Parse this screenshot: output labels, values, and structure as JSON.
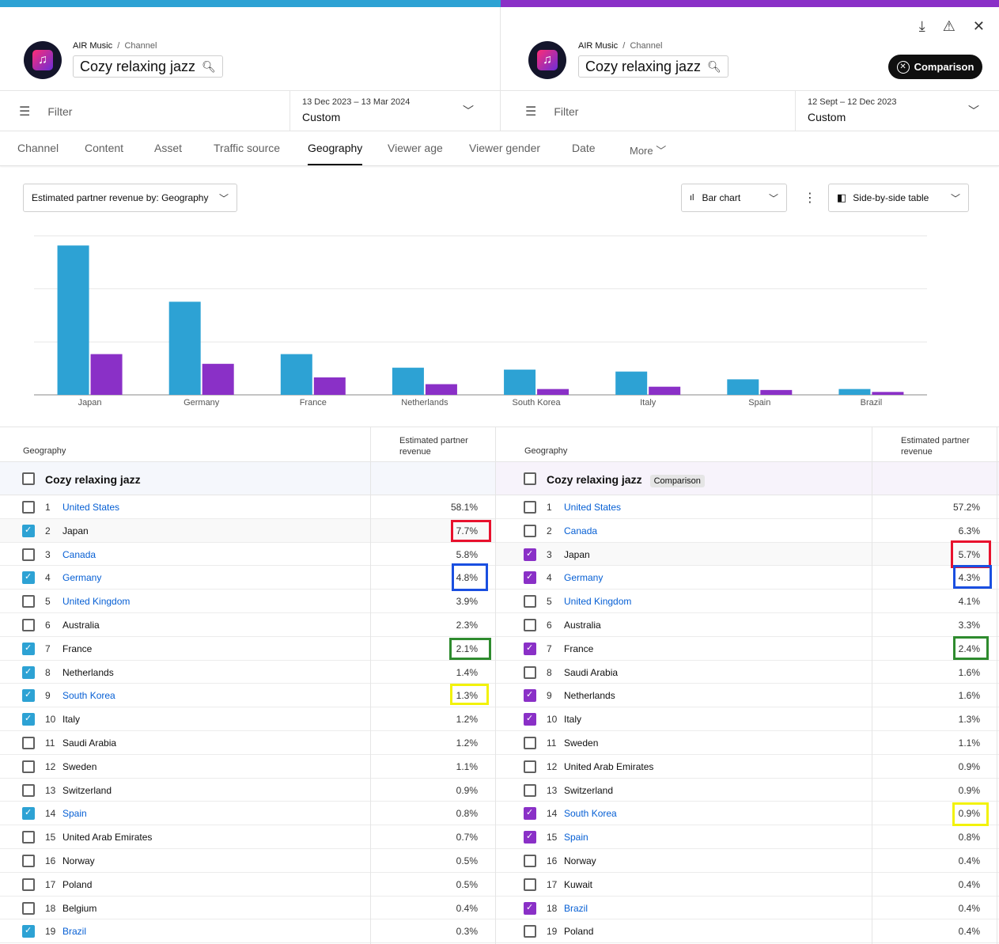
{
  "header": {
    "left": {
      "crumb_brand": "AIR Music",
      "crumb_sep": "/",
      "crumb_page": "Channel",
      "channel_name": "Cozy relaxing jazz"
    },
    "right": {
      "crumb_brand": "AIR Music",
      "crumb_sep": "/",
      "crumb_page": "Channel",
      "channel_name": "Cozy relaxing jazz"
    },
    "comparison_button": "Comparison",
    "icons": [
      "download-icon",
      "feedback-icon",
      "close-icon"
    ]
  },
  "filters": {
    "left": {
      "placeholder": "Filter",
      "date_range": "13 Dec 2023 – 13 Mar 2024",
      "date_mode": "Custom"
    },
    "right": {
      "placeholder": "Filter",
      "date_range": "12 Sept – 12 Dec 2023",
      "date_mode": "Custom"
    }
  },
  "tabs": [
    "Channel",
    "Content",
    "Asset",
    "Traffic source",
    "Geography",
    "Viewer age",
    "Viewer gender",
    "Date",
    "More"
  ],
  "active_tab": "Geography",
  "controls": {
    "metric_select": "Estimated partner revenue by: Geography",
    "chart_type": "Bar chart",
    "table_mode": "Side-by-side table"
  },
  "chart_data": {
    "type": "bar",
    "categories": [
      "Japan",
      "Germany",
      "France",
      "Netherlands",
      "South Korea",
      "Italy",
      "Spain",
      "Brazil"
    ],
    "series": [
      {
        "values": [
          7.7,
          4.8,
          2.1,
          1.4,
          1.3,
          1.2,
          0.8,
          0.3
        ]
      },
      {
        "values": [
          2.1,
          1.6,
          0.9,
          0.55,
          0.3,
          0.42,
          0.25,
          0.15
        ]
      }
    ],
    "colors": [
      "#2da2d4",
      "#8a30c7"
    ],
    "ylim": [
      0,
      8.2
    ],
    "grid": true
  },
  "tables": {
    "left": {
      "geo_header": "Geography",
      "rev_header_1": "Estimated partner",
      "rev_header_2": "revenue",
      "total_label": "Cozy relaxing jazz",
      "rows": [
        {
          "rank": "1",
          "name": "United States",
          "value": "58.1%",
          "checked": false,
          "link": true
        },
        {
          "rank": "2",
          "name": "Japan",
          "value": "7.7%",
          "checked": true,
          "link": false
        },
        {
          "rank": "3",
          "name": "Canada",
          "value": "5.8%",
          "checked": false,
          "link": true
        },
        {
          "rank": "4",
          "name": "Germany",
          "value": "4.8%",
          "checked": true,
          "link": true
        },
        {
          "rank": "5",
          "name": "United Kingdom",
          "value": "3.9%",
          "checked": false,
          "link": true
        },
        {
          "rank": "6",
          "name": "Australia",
          "value": "2.3%",
          "checked": false,
          "link": false
        },
        {
          "rank": "7",
          "name": "France",
          "value": "2.1%",
          "checked": true,
          "link": false
        },
        {
          "rank": "8",
          "name": "Netherlands",
          "value": "1.4%",
          "checked": true,
          "link": false
        },
        {
          "rank": "9",
          "name": "South Korea",
          "value": "1.3%",
          "checked": true,
          "link": true
        },
        {
          "rank": "10",
          "name": "Italy",
          "value": "1.2%",
          "checked": true,
          "link": false
        },
        {
          "rank": "11",
          "name": "Saudi Arabia",
          "value": "1.2%",
          "checked": false,
          "link": false
        },
        {
          "rank": "12",
          "name": "Sweden",
          "value": "1.1%",
          "checked": false,
          "link": false
        },
        {
          "rank": "13",
          "name": "Switzerland",
          "value": "0.9%",
          "checked": false,
          "link": false
        },
        {
          "rank": "14",
          "name": "Spain",
          "value": "0.8%",
          "checked": true,
          "link": true
        },
        {
          "rank": "15",
          "name": "United Arab Emirates",
          "value": "0.7%",
          "checked": false,
          "link": false
        },
        {
          "rank": "16",
          "name": "Norway",
          "value": "0.5%",
          "checked": false,
          "link": false
        },
        {
          "rank": "17",
          "name": "Poland",
          "value": "0.5%",
          "checked": false,
          "link": false
        },
        {
          "rank": "18",
          "name": "Belgium",
          "value": "0.4%",
          "checked": false,
          "link": false
        },
        {
          "rank": "19",
          "name": "Brazil",
          "value": "0.3%",
          "checked": true,
          "link": true
        }
      ]
    },
    "right": {
      "geo_header": "Geography",
      "rev_header_1": "Estimated partner",
      "rev_header_2": "revenue",
      "total_label": "Cozy relaxing jazz",
      "badge": "Comparison",
      "rows": [
        {
          "rank": "1",
          "name": "United States",
          "value": "57.2%",
          "checked": false,
          "link": true
        },
        {
          "rank": "2",
          "name": "Canada",
          "value": "6.3%",
          "checked": false,
          "link": true
        },
        {
          "rank": "3",
          "name": "Japan",
          "value": "5.7%",
          "checked": true,
          "link": false
        },
        {
          "rank": "4",
          "name": "Germany",
          "value": "4.3%",
          "checked": true,
          "link": true
        },
        {
          "rank": "5",
          "name": "United Kingdom",
          "value": "4.1%",
          "checked": false,
          "link": true
        },
        {
          "rank": "6",
          "name": "Australia",
          "value": "3.3%",
          "checked": false,
          "link": false
        },
        {
          "rank": "7",
          "name": "France",
          "value": "2.4%",
          "checked": true,
          "link": false
        },
        {
          "rank": "8",
          "name": "Saudi Arabia",
          "value": "1.6%",
          "checked": false,
          "link": false
        },
        {
          "rank": "9",
          "name": "Netherlands",
          "value": "1.6%",
          "checked": true,
          "link": false
        },
        {
          "rank": "10",
          "name": "Italy",
          "value": "1.3%",
          "checked": true,
          "link": false
        },
        {
          "rank": "11",
          "name": "Sweden",
          "value": "1.1%",
          "checked": false,
          "link": false
        },
        {
          "rank": "12",
          "name": "United Arab Emirates",
          "value": "0.9%",
          "checked": false,
          "link": false
        },
        {
          "rank": "13",
          "name": "Switzerland",
          "value": "0.9%",
          "checked": false,
          "link": false
        },
        {
          "rank": "14",
          "name": "South Korea",
          "value": "0.9%",
          "checked": true,
          "link": true
        },
        {
          "rank": "15",
          "name": "Spain",
          "value": "0.8%",
          "checked": true,
          "link": true
        },
        {
          "rank": "16",
          "name": "Norway",
          "value": "0.4%",
          "checked": false,
          "link": false
        },
        {
          "rank": "17",
          "name": "Kuwait",
          "value": "0.4%",
          "checked": false,
          "link": false
        },
        {
          "rank": "18",
          "name": "Brazil",
          "value": "0.4%",
          "checked": true,
          "link": true
        },
        {
          "rank": "19",
          "name": "Poland",
          "value": "0.4%",
          "checked": false,
          "link": false
        }
      ]
    }
  },
  "annotation_colors": {
    "red": "#e8112d",
    "blue": "#1a4fe0",
    "green": "#2e8b2e",
    "yellow": "#f2f20a"
  }
}
